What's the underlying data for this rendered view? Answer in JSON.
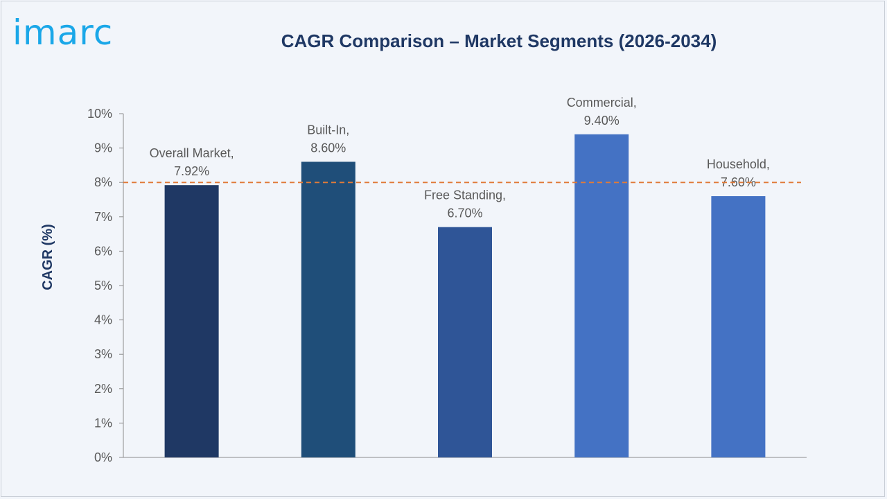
{
  "logo": {
    "text": "imarc"
  },
  "chart_data": {
    "type": "bar",
    "title": "CAGR Comparison – Market Segments (2026-2034)",
    "xlabel": "",
    "ylabel": "CAGR (%)",
    "ylim": [
      0,
      10
    ],
    "yticks": [
      "0%",
      "1%",
      "2%",
      "3%",
      "4%",
      "5%",
      "6%",
      "7%",
      "8%",
      "9%",
      "10%"
    ],
    "categories": [
      "Overall Market",
      "Built-In",
      "Free Standing",
      "Commercial",
      "Household"
    ],
    "values": [
      7.92,
      8.6,
      6.7,
      9.4,
      7.6
    ],
    "data_labels": [
      [
        "Overall Market,",
        "7.92%"
      ],
      [
        "Built-In,",
        "8.60%"
      ],
      [
        "Free Standing,",
        "6.70%"
      ],
      [
        "Commercial,",
        "9.40%"
      ],
      [
        "Household,",
        "7.60%"
      ]
    ],
    "colors": [
      "#1f3864",
      "#1f4e79",
      "#2f5597",
      "#4472c4",
      "#4472c4"
    ],
    "reference_line": {
      "value": 8,
      "color": "#e07b39",
      "style": "dashed"
    },
    "grid": false,
    "legend": "none"
  }
}
